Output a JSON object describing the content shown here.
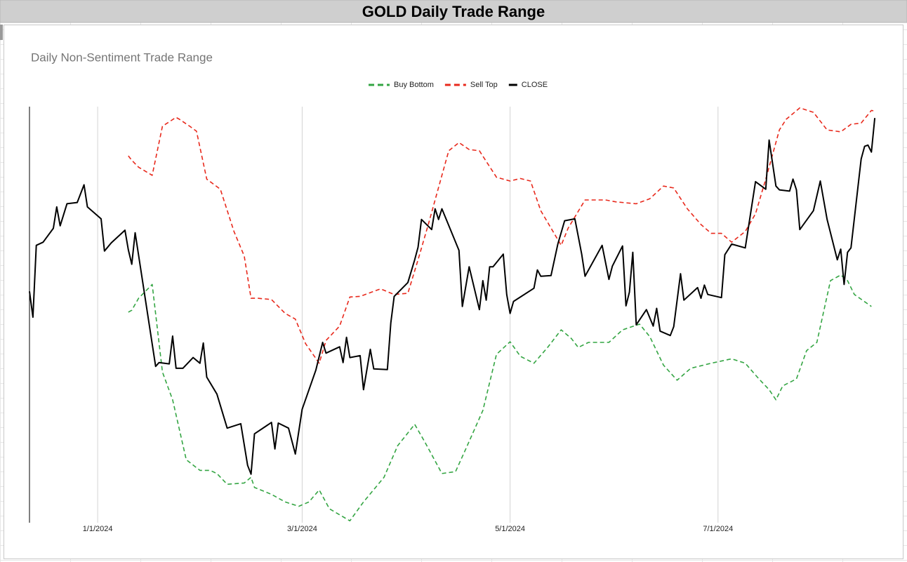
{
  "chart_data": {
    "type": "line",
    "title": "GOLD Daily Trade Range",
    "subtitle": "Daily Non-Sentiment Trade Range",
    "legend": "top",
    "grid": true,
    "xlim": [
      "2023-12-12",
      "2024-08-17"
    ],
    "xticks": [
      {
        "value": "2024-01-01",
        "label": "1/1/2024"
      },
      {
        "value": "2024-03-01",
        "label": "3/1/2024"
      },
      {
        "value": "2024-05-01",
        "label": "5/1/2024"
      },
      {
        "value": "2024-07-01",
        "label": "7/1/2024"
      }
    ],
    "ylim": [
      13.5,
      20.1
    ],
    "series": [
      {
        "name": "Buy Bottom",
        "color": "#34a543",
        "line_style": "dashed",
        "x": [
          "2024-01-10",
          "2024-01-11",
          "2024-01-13",
          "2024-01-17",
          "2024-01-20",
          "2024-01-23",
          "2024-01-27",
          "2024-01-31",
          "2024-02-03",
          "2024-02-05",
          "2024-02-08",
          "2024-02-13",
          "2024-02-15",
          "2024-02-16",
          "2024-02-21",
          "2024-02-25",
          "2024-02-29",
          "2024-03-03",
          "2024-03-06",
          "2024-03-09",
          "2024-03-15",
          "2024-03-19",
          "2024-03-25",
          "2024-03-29",
          "2024-04-03",
          "2024-04-06",
          "2024-04-11",
          "2024-04-15",
          "2024-04-18",
          "2024-04-23",
          "2024-04-27",
          "2024-05-01",
          "2024-05-04",
          "2024-05-08",
          "2024-05-12",
          "2024-05-16",
          "2024-05-19",
          "2024-05-21",
          "2024-05-24",
          "2024-05-30",
          "2024-06-03",
          "2024-06-08",
          "2024-06-11",
          "2024-06-15",
          "2024-06-19",
          "2024-06-23",
          "2024-06-29",
          "2024-07-05",
          "2024-07-09",
          "2024-07-13",
          "2024-07-16",
          "2024-07-18",
          "2024-07-20",
          "2024-07-24",
          "2024-07-27",
          "2024-07-30",
          "2024-08-03",
          "2024-08-06",
          "2024-08-08",
          "2024-08-10",
          "2024-08-15"
        ],
        "values": [
          16.84,
          16.87,
          17.06,
          17.28,
          15.89,
          15.45,
          14.5,
          14.33,
          14.33,
          14.28,
          14.11,
          14.13,
          14.22,
          14.06,
          13.95,
          13.83,
          13.76,
          13.83,
          14.02,
          13.72,
          13.53,
          13.83,
          14.22,
          14.72,
          15.06,
          14.78,
          14.28,
          14.31,
          14.67,
          15.28,
          16.17,
          16.37,
          16.14,
          16.03,
          16.28,
          16.56,
          16.42,
          16.28,
          16.36,
          16.36,
          16.56,
          16.65,
          16.45,
          16.0,
          15.76,
          15.95,
          16.03,
          16.1,
          16.03,
          15.78,
          15.61,
          15.45,
          15.67,
          15.78,
          16.23,
          16.36,
          17.34,
          17.43,
          17.34,
          17.12,
          16.93
        ]
      },
      {
        "name": "Sell Top",
        "color": "#e8291c",
        "line_style": "dashed",
        "x": [
          "2024-01-10",
          "2024-01-11",
          "2024-01-13",
          "2024-01-17",
          "2024-01-20",
          "2024-01-24",
          "2024-01-25",
          "2024-01-28",
          "2024-01-30",
          "2024-02-02",
          "2024-02-06",
          "2024-02-10",
          "2024-02-13",
          "2024-02-15",
          "2024-02-17",
          "2024-02-21",
          "2024-02-25",
          "2024-02-28",
          "2024-03-02",
          "2024-03-06",
          "2024-03-08",
          "2024-03-12",
          "2024-03-15",
          "2024-03-18",
          "2024-03-24",
          "2024-03-28",
          "2024-04-01",
          "2024-04-04",
          "2024-04-07",
          "2024-04-11",
          "2024-04-13",
          "2024-04-16",
          "2024-04-19",
          "2024-04-22",
          "2024-04-27",
          "2024-05-01",
          "2024-05-04",
          "2024-05-07",
          "2024-05-10",
          "2024-05-16",
          "2024-05-18",
          "2024-05-23",
          "2024-05-29",
          "2024-06-01",
          "2024-06-07",
          "2024-06-11",
          "2024-06-15",
          "2024-06-18",
          "2024-06-22",
          "2024-06-26",
          "2024-06-29",
          "2024-07-02",
          "2024-07-05",
          "2024-07-09",
          "2024-07-12",
          "2024-07-15",
          "2024-07-17",
          "2024-07-19",
          "2024-07-21",
          "2024-07-25",
          "2024-07-29",
          "2024-08-02",
          "2024-08-06",
          "2024-08-09",
          "2024-08-12",
          "2024-08-15",
          "2024-08-16"
        ],
        "values": [
          19.32,
          19.25,
          19.14,
          19.01,
          19.79,
          19.93,
          19.9,
          19.79,
          19.71,
          18.95,
          18.79,
          18.12,
          17.73,
          17.06,
          17.06,
          17.04,
          16.82,
          16.73,
          16.34,
          16.03,
          16.39,
          16.62,
          17.08,
          17.09,
          17.21,
          17.12,
          17.14,
          17.67,
          18.23,
          19.01,
          19.4,
          19.53,
          19.42,
          19.4,
          18.98,
          18.92,
          18.96,
          18.92,
          18.45,
          17.9,
          18.17,
          18.62,
          18.62,
          18.59,
          18.56,
          18.64,
          18.84,
          18.81,
          18.48,
          18.23,
          18.09,
          18.09,
          17.95,
          18.12,
          18.4,
          18.95,
          19.34,
          19.73,
          19.9,
          20.08,
          20.01,
          19.73,
          19.7,
          19.82,
          19.84,
          20.04,
          20.03
        ]
      },
      {
        "name": "CLOSE",
        "color": "#000000",
        "line_style": "solid",
        "x": [
          "2023-12-12",
          "2023-12-13",
          "2023-12-14",
          "2023-12-16",
          "2023-12-19",
          "2023-12-20",
          "2023-12-21",
          "2023-12-23",
          "2023-12-26",
          "2023-12-28",
          "2023-12-29",
          "2024-01-02",
          "2024-01-03",
          "2024-01-05",
          "2024-01-09",
          "2024-01-10",
          "2024-01-11",
          "2024-01-12",
          "2024-01-18",
          "2024-01-19",
          "2024-01-22",
          "2024-01-23",
          "2024-01-24",
          "2024-01-26",
          "2024-01-29",
          "2024-01-31",
          "2024-02-01",
          "2024-02-02",
          "2024-02-05",
          "2024-02-08",
          "2024-02-12",
          "2024-02-14",
          "2024-02-15",
          "2024-02-16",
          "2024-02-21",
          "2024-02-22",
          "2024-02-23",
          "2024-02-26",
          "2024-02-28",
          "2024-03-01",
          "2024-03-05",
          "2024-03-07",
          "2024-03-08",
          "2024-03-12",
          "2024-03-13",
          "2024-03-14",
          "2024-03-15",
          "2024-03-18",
          "2024-03-19",
          "2024-03-21",
          "2024-03-22",
          "2024-03-26",
          "2024-03-27",
          "2024-03-28",
          "2024-04-01",
          "2024-04-03",
          "2024-04-04",
          "2024-04-05",
          "2024-04-08",
          "2024-04-09",
          "2024-04-10",
          "2024-04-11",
          "2024-04-16",
          "2024-04-17",
          "2024-04-19",
          "2024-04-22",
          "2024-04-23",
          "2024-04-24",
          "2024-04-25",
          "2024-04-26",
          "2024-04-29",
          "2024-04-30",
          "2024-05-01",
          "2024-05-02",
          "2024-05-08",
          "2024-05-09",
          "2024-05-10",
          "2024-05-13",
          "2024-05-15",
          "2024-05-17",
          "2024-05-20",
          "2024-05-22",
          "2024-05-23",
          "2024-05-28",
          "2024-05-30",
          "2024-05-31",
          "2024-06-03",
          "2024-06-04",
          "2024-06-05",
          "2024-06-06",
          "2024-06-07",
          "2024-06-10",
          "2024-06-12",
          "2024-06-13",
          "2024-06-14",
          "2024-06-17",
          "2024-06-18",
          "2024-06-20",
          "2024-06-21",
          "2024-06-25",
          "2024-06-26",
          "2024-06-27",
          "2024-06-28",
          "2024-07-02",
          "2024-07-03",
          "2024-07-05",
          "2024-07-09",
          "2024-07-12",
          "2024-07-15",
          "2024-07-16",
          "2024-07-18",
          "2024-07-19",
          "2024-07-22",
          "2024-07-23",
          "2024-07-24",
          "2024-07-25",
          "2024-07-29",
          "2024-07-31",
          "2024-08-02",
          "2024-08-05",
          "2024-08-06",
          "2024-08-07",
          "2024-08-08",
          "2024-08-09",
          "2024-08-12",
          "2024-08-13",
          "2024-08-14",
          "2024-08-15",
          "2024-08-16"
        ],
        "values": [
          17.17,
          16.76,
          17.9,
          17.95,
          18.17,
          18.51,
          18.21,
          18.56,
          18.58,
          18.86,
          18.51,
          18.32,
          17.81,
          17.94,
          18.14,
          17.83,
          17.6,
          18.1,
          15.98,
          16.04,
          16.02,
          16.46,
          15.95,
          15.95,
          16.12,
          16.03,
          16.35,
          15.81,
          15.54,
          15.0,
          15.07,
          14.41,
          14.27,
          14.91,
          15.09,
          14.67,
          15.08,
          15.0,
          14.59,
          15.3,
          15.92,
          16.36,
          16.19,
          16.29,
          16.04,
          16.44,
          16.12,
          16.15,
          15.61,
          16.25,
          15.94,
          15.93,
          16.67,
          17.09,
          17.31,
          17.67,
          17.87,
          18.31,
          18.15,
          18.48,
          18.31,
          18.48,
          17.82,
          16.93,
          17.56,
          16.88,
          17.34,
          17.03,
          17.56,
          17.56,
          17.76,
          17.12,
          16.82,
          17.01,
          17.22,
          17.51,
          17.41,
          17.42,
          17.92,
          18.29,
          18.32,
          17.76,
          17.41,
          17.9,
          17.36,
          17.57,
          17.89,
          16.94,
          17.16,
          17.79,
          16.64,
          16.88,
          16.62,
          16.9,
          16.54,
          16.47,
          16.61,
          17.45,
          17.03,
          17.23,
          17.06,
          17.27,
          17.12,
          17.07,
          17.75,
          17.92,
          17.86,
          18.91,
          18.79,
          19.57,
          18.84,
          18.78,
          18.76,
          18.95,
          18.78,
          18.15,
          18.45,
          18.92,
          18.31,
          17.67,
          17.84,
          17.28,
          17.79,
          17.86,
          19.27,
          19.47,
          19.49,
          19.38,
          19.92
        ]
      }
    ]
  }
}
